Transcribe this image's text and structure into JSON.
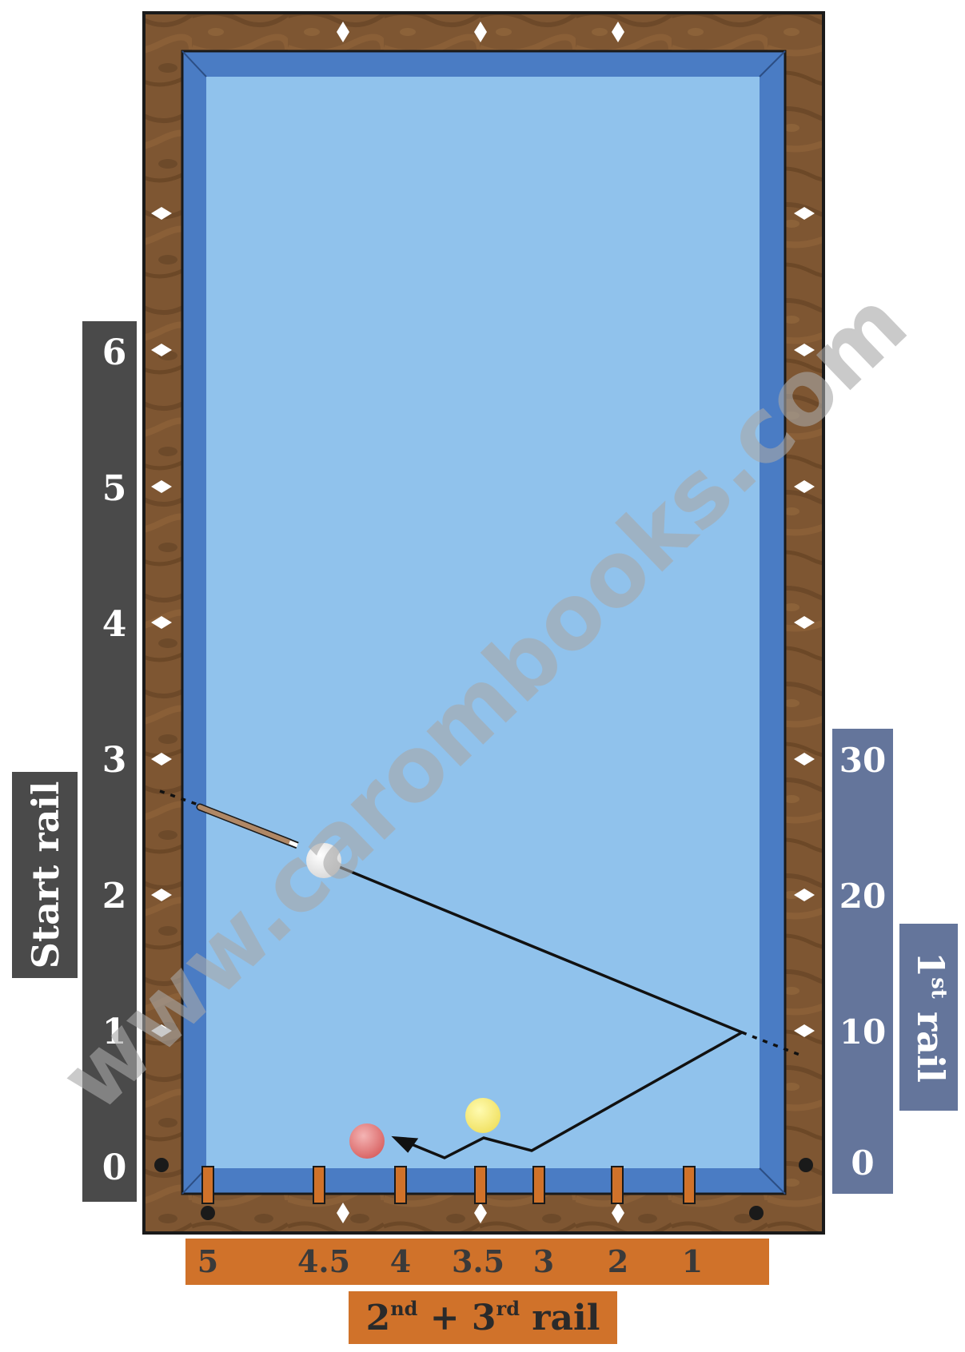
{
  "watermark": "www.carombooks.com",
  "start_rail": {
    "title": "Start rail",
    "numbers": [
      "0",
      "1",
      "2",
      "3",
      "4",
      "5",
      "6"
    ]
  },
  "first_rail": {
    "title_main": "1",
    "title_sup": "st",
    "title_rest": " rail",
    "numbers": [
      "0",
      "10",
      "20",
      "30"
    ]
  },
  "second_third_rail": {
    "title_a": "2",
    "sup_a": "nd",
    "plus": " + 3",
    "sup_b": "rd",
    "title_rest": " rail",
    "numbers": [
      "5",
      "4.5",
      "4",
      "3.5",
      "3",
      "2",
      "1"
    ]
  },
  "colors": {
    "cloth": "#90c2ec",
    "cushion": "#4a7cc4",
    "wood": "#7a5530",
    "left_panel": "#4a4a4a",
    "right_panel": "#64759b",
    "bottom_panel": "#d0722a",
    "marker": "#d0722a",
    "cue_ball": "#ffffff",
    "yellow_ball": "#f8f07a",
    "red_ball": "#e08080"
  },
  "balls": [
    "cue-ball",
    "yellow-ball",
    "red-ball"
  ]
}
